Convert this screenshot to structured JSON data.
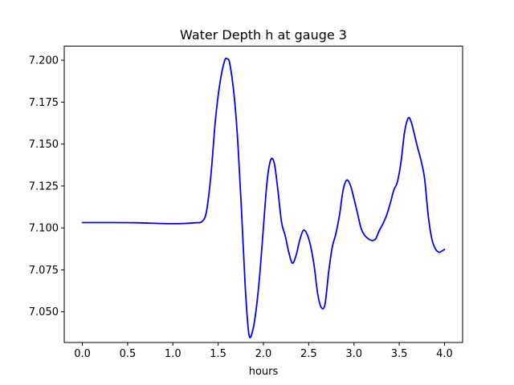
{
  "chart_data": {
    "type": "line",
    "title": "Water Depth h at gauge 3",
    "xlabel": "hours",
    "ylabel": "",
    "xlim": [
      -0.2,
      4.2
    ],
    "ylim": [
      7.0317,
      7.2084
    ],
    "grid": false,
    "xticks": [
      0.0,
      0.5,
      1.0,
      1.5,
      2.0,
      2.5,
      3.0,
      3.5,
      4.0
    ],
    "xtick_labels": [
      "0.0",
      "0.5",
      "1.0",
      "1.5",
      "2.0",
      "2.5",
      "3.0",
      "3.5",
      "4.0"
    ],
    "yticks": [
      7.05,
      7.075,
      7.1,
      7.125,
      7.15,
      7.175,
      7.2
    ],
    "ytick_labels": [
      "7.050",
      "7.075",
      "7.100",
      "7.125",
      "7.150",
      "7.175",
      "7.200"
    ],
    "series": [
      {
        "color": "#0000ff",
        "x": [
          0.0,
          0.3,
          0.6,
          0.9,
          1.1,
          1.25,
          1.32,
          1.37,
          1.42,
          1.47,
          1.52,
          1.57,
          1.6,
          1.63,
          1.68,
          1.72,
          1.76,
          1.8,
          1.84,
          1.88,
          1.92,
          1.96,
          2.0,
          2.04,
          2.08,
          2.12,
          2.16,
          2.2,
          2.24,
          2.28,
          2.32,
          2.36,
          2.4,
          2.44,
          2.48,
          2.52,
          2.56,
          2.6,
          2.64,
          2.68,
          2.72,
          2.76,
          2.8,
          2.84,
          2.88,
          2.92,
          2.96,
          3.0,
          3.04,
          3.08,
          3.12,
          3.16,
          3.2,
          3.24,
          3.28,
          3.32,
          3.36,
          3.4,
          3.44,
          3.48,
          3.52,
          3.56,
          3.6,
          3.63,
          3.66,
          3.7,
          3.74,
          3.78,
          3.82,
          3.86,
          3.9,
          3.94,
          3.97,
          4.0
        ],
        "y": [
          7.1032,
          7.1032,
          7.1031,
          7.1026,
          7.1026,
          7.1031,
          7.1038,
          7.1095,
          7.1315,
          7.1645,
          7.1865,
          7.1995,
          7.2008,
          7.1975,
          7.177,
          7.1485,
          7.108,
          7.064,
          7.0365,
          7.0385,
          7.0515,
          7.0725,
          7.1005,
          7.1275,
          7.1405,
          7.1385,
          7.1225,
          7.1035,
          7.0955,
          7.0855,
          7.079,
          7.0835,
          7.0925,
          7.0985,
          7.0965,
          7.0895,
          7.0775,
          7.0605,
          7.0525,
          7.0545,
          7.0735,
          7.0885,
          7.0965,
          7.1075,
          7.1225,
          7.1285,
          7.1255,
          7.1175,
          7.1085,
          7.0995,
          7.0955,
          7.0935,
          7.0925,
          7.0935,
          7.0985,
          7.1025,
          7.1075,
          7.1145,
          7.1225,
          7.1275,
          7.1395,
          7.1575,
          7.1655,
          7.1635,
          7.1575,
          7.1485,
          7.1405,
          7.1295,
          7.1075,
          7.0935,
          7.0875,
          7.0855,
          7.0862,
          7.0872
        ]
      }
    ]
  }
}
